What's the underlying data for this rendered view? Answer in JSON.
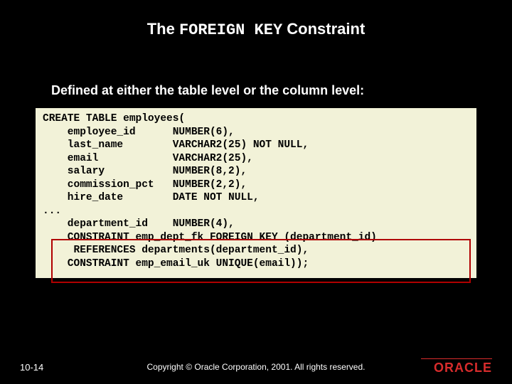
{
  "colors": {
    "background": "#000000",
    "text": "#ffffff",
    "codeBackground": "#f2f2d8",
    "codeText": "#000000",
    "highlightBorder": "#b00000",
    "logoColor": "#d82c2c"
  },
  "title": {
    "prefix": "The ",
    "keyword": "FOREIGN KEY",
    "suffix": " Constraint"
  },
  "subtitle": "Defined at either the table level or the column level:",
  "code": "CREATE TABLE employees(\n    employee_id      NUMBER(6),\n    last_name        VARCHAR2(25) NOT NULL,\n    email            VARCHAR2(25),\n    salary           NUMBER(8,2),\n    commission_pct   NUMBER(2,2),\n    hire_date        DATE NOT NULL,\n...\n    department_id    NUMBER(4),\n    CONSTRAINT emp_dept_fk FOREIGN KEY (department_id)\n     REFERENCES departments(department_id),\n    CONSTRAINT emp_email_uk UNIQUE(email));",
  "footer": {
    "pageNumber": "10-14",
    "copyright": "Copyright © Oracle Corporation, 2001. All rights reserved.",
    "logo": "ORACLE"
  }
}
